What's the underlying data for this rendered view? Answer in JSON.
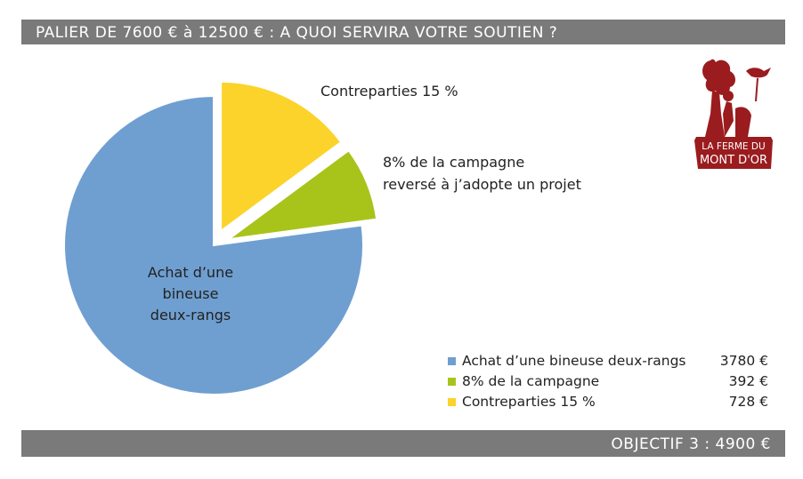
{
  "header": {
    "title": "PALIER DE 7600 € à 12500 €   :  A QUOI SERVIRA VOTRE SOUTIEN ?"
  },
  "footer": {
    "objective": "OBJECTIF  3   : 4900 €"
  },
  "logo": {
    "text_line1": "LA FERME DU",
    "text_line2": "MONT D'OR",
    "color": "#9a1c1f"
  },
  "chart_data": {
    "type": "pie",
    "title": "PALIER DE 7600 € à 12500 €   :  A QUOI SERVIRA VOTRE SOUTIEN ?",
    "legend_position": "bottom-right",
    "slices": [
      {
        "name": "Achat d’une bineuse deux-rangs",
        "value": 3780,
        "value_label": "3780 €",
        "percent": 77.1,
        "color": "#6f9fd0",
        "exploded": false,
        "label_lines": [
          "Achat d’une",
          "bineuse",
          "deux-rangs"
        ]
      },
      {
        "name": "8% de la campagne",
        "value": 392,
        "value_label": "392 €",
        "percent": 8.0,
        "color": "#a8c41b",
        "exploded": true,
        "label_lines": [
          "8% de la campagne",
          "reversé à j’adopte un projet"
        ]
      },
      {
        "name": "Contreparties 15 %",
        "value": 728,
        "value_label": "728 €",
        "percent": 14.9,
        "color": "#fcd32a",
        "exploded": true,
        "label_lines": [
          "Contreparties 15 %"
        ]
      }
    ]
  }
}
